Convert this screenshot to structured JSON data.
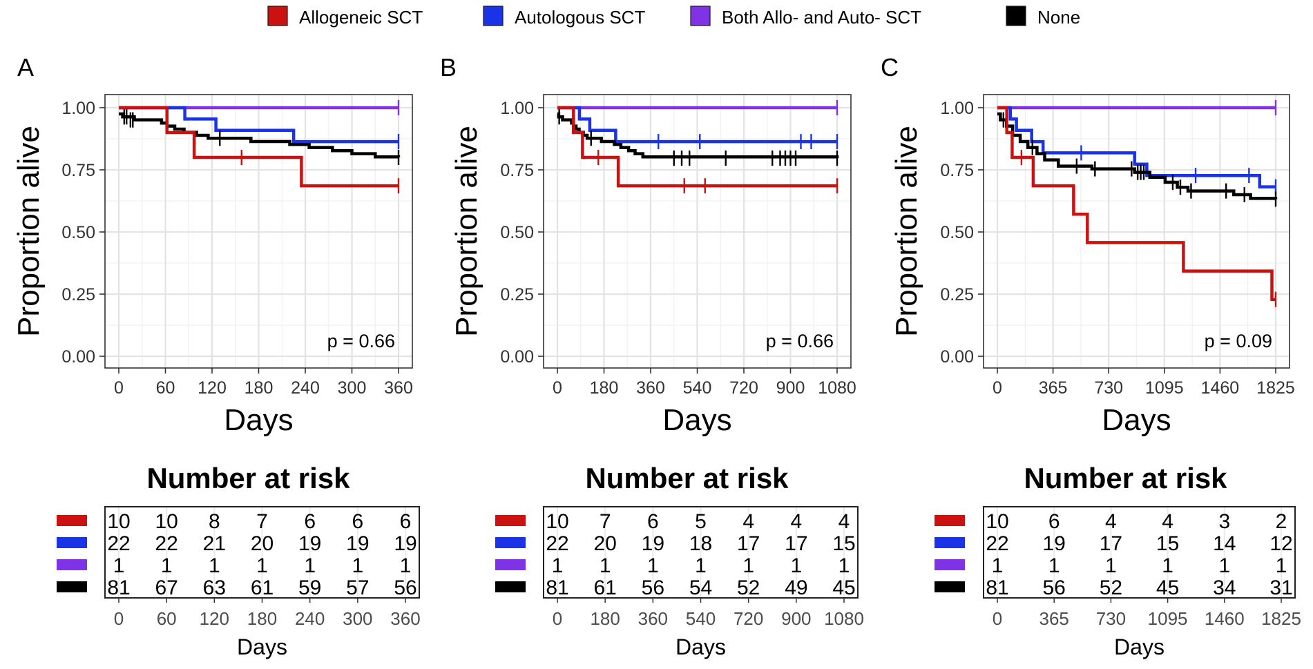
{
  "legend": [
    {
      "label": "Allogeneic SCT",
      "color": "#cc1111"
    },
    {
      "label": "Autologous SCT",
      "color": "#1a33e6"
    },
    {
      "label": "Both Allo- and Auto- SCT",
      "color": "#8033e6"
    },
    {
      "label": "None",
      "color": "#000000"
    }
  ],
  "risk_title": "Number at risk",
  "chart_data": [
    {
      "type": "line",
      "panel": "A",
      "xlabel": "Days",
      "ylabel": "Proportion alive",
      "xlim": [
        0,
        360
      ],
      "ylim": [
        0,
        1
      ],
      "xticks": [
        0,
        60,
        120,
        180,
        240,
        300,
        360
      ],
      "yticks": [
        "0.00",
        "0.25",
        "0.50",
        "0.75",
        "1.00"
      ],
      "pvalue": "p = 0.66",
      "series": [
        {
          "name": "Allogeneic SCT",
          "steps": [
            [
              0,
              1.0
            ],
            [
              62,
              0.9
            ],
            [
              97,
              0.8
            ],
            [
              235,
              0.6857
            ],
            [
              360,
              0.6857
            ]
          ],
          "censors": [
            [
              158,
              0.8
            ],
            [
              360,
              0.6857
            ]
          ]
        },
        {
          "name": "Autologous SCT",
          "steps": [
            [
              0,
              1.0
            ],
            [
              85,
              0.9545
            ],
            [
              125,
              0.9091
            ],
            [
              225,
              0.8636
            ],
            [
              360,
              0.8636
            ]
          ],
          "censors": [
            [
              360,
              0.8636
            ]
          ]
        },
        {
          "name": "Both Allo- and Auto- SCT",
          "steps": [
            [
              0,
              1.0
            ],
            [
              360,
              1.0
            ]
          ],
          "censors": [
            [
              360,
              1.0
            ]
          ]
        },
        {
          "name": "None",
          "steps": [
            [
              0,
              0.975
            ],
            [
              5,
              0.963
            ],
            [
              20,
              0.951
            ],
            [
              55,
              0.938
            ],
            [
              62,
              0.926
            ],
            [
              72,
              0.914
            ],
            [
              84,
              0.901
            ],
            [
              100,
              0.889
            ],
            [
              115,
              0.877
            ],
            [
              170,
              0.864
            ],
            [
              220,
              0.852
            ],
            [
              245,
              0.84
            ],
            [
              275,
              0.827
            ],
            [
              300,
              0.815
            ],
            [
              330,
              0.802
            ],
            [
              360,
              0.8
            ]
          ],
          "censors": [
            [
              7,
              0.963
            ],
            [
              10,
              0.963
            ],
            [
              15,
              0.951
            ],
            [
              18,
              0.951
            ],
            [
              130,
              0.877
            ],
            [
              360,
              0.8
            ]
          ]
        }
      ],
      "risk_ticks": [
        0,
        60,
        120,
        180,
        240,
        300,
        360
      ],
      "risk_table": [
        [
          "10",
          "10",
          "8",
          "7",
          "6",
          "6",
          "6"
        ],
        [
          "22",
          "22",
          "21",
          "20",
          "19",
          "19",
          "19"
        ],
        [
          "1",
          "1",
          "1",
          "1",
          "1",
          "1",
          "1"
        ],
        [
          "81",
          "67",
          "63",
          "61",
          "59",
          "57",
          "56"
        ]
      ]
    },
    {
      "type": "line",
      "panel": "B",
      "xlabel": "Days",
      "ylabel": "Proportion alive",
      "xlim": [
        0,
        1080
      ],
      "ylim": [
        0,
        1
      ],
      "xticks": [
        0,
        180,
        360,
        540,
        720,
        900,
        1080
      ],
      "yticks": [
        "0.00",
        "0.25",
        "0.50",
        "0.75",
        "1.00"
      ],
      "pvalue": "p = 0.66",
      "series": [
        {
          "name": "Allogeneic SCT",
          "steps": [
            [
              0,
              1.0
            ],
            [
              62,
              0.9
            ],
            [
              97,
              0.8
            ],
            [
              235,
              0.6857
            ],
            [
              1080,
              0.6857
            ]
          ],
          "censors": [
            [
              158,
              0.8
            ],
            [
              490,
              0.6857
            ],
            [
              570,
              0.6857
            ],
            [
              1080,
              0.6857
            ]
          ]
        },
        {
          "name": "Autologous SCT",
          "steps": [
            [
              0,
              1.0
            ],
            [
              85,
              0.9545
            ],
            [
              125,
              0.9091
            ],
            [
              225,
              0.8636
            ],
            [
              1080,
              0.8636
            ]
          ],
          "censors": [
            [
              390,
              0.8636
            ],
            [
              550,
              0.8636
            ],
            [
              940,
              0.8636
            ],
            [
              980,
              0.8636
            ],
            [
              1080,
              0.8636
            ]
          ]
        },
        {
          "name": "Both Allo- and Auto- SCT",
          "steps": [
            [
              0,
              1.0
            ],
            [
              1080,
              1.0
            ]
          ],
          "censors": [
            [
              1080,
              1.0
            ]
          ]
        },
        {
          "name": "None",
          "steps": [
            [
              0,
              0.975
            ],
            [
              5,
              0.963
            ],
            [
              20,
              0.951
            ],
            [
              55,
              0.938
            ],
            [
              62,
              0.926
            ],
            [
              72,
              0.914
            ],
            [
              84,
              0.901
            ],
            [
              100,
              0.889
            ],
            [
              115,
              0.877
            ],
            [
              170,
              0.864
            ],
            [
              220,
              0.852
            ],
            [
              245,
              0.84
            ],
            [
              275,
              0.827
            ],
            [
              300,
              0.815
            ],
            [
              330,
              0.802
            ],
            [
              1080,
              0.797
            ]
          ],
          "censors": [
            [
              7,
              0.963
            ],
            [
              60,
              0.926
            ],
            [
              130,
              0.877
            ],
            [
              450,
              0.797
            ],
            [
              480,
              0.797
            ],
            [
              510,
              0.797
            ],
            [
              650,
              0.797
            ],
            [
              830,
              0.797
            ],
            [
              860,
              0.797
            ],
            [
              880,
              0.797
            ],
            [
              900,
              0.797
            ],
            [
              920,
              0.797
            ],
            [
              1080,
              0.797
            ]
          ]
        }
      ],
      "risk_ticks": [
        0,
        180,
        360,
        540,
        720,
        900,
        1080
      ],
      "risk_table": [
        [
          "10",
          "7",
          "6",
          "5",
          "4",
          "4",
          "4"
        ],
        [
          "22",
          "20",
          "19",
          "18",
          "17",
          "17",
          "15"
        ],
        [
          "1",
          "1",
          "1",
          "1",
          "1",
          "1",
          "1"
        ],
        [
          "81",
          "61",
          "56",
          "54",
          "52",
          "49",
          "45"
        ]
      ]
    },
    {
      "type": "line",
      "panel": "C",
      "xlabel": "Days",
      "ylabel": "Proportion alive",
      "xlim": [
        0,
        1825
      ],
      "ylim": [
        0,
        1
      ],
      "xticks": [
        0,
        365,
        730,
        1095,
        1460,
        1825
      ],
      "yticks": [
        "0.00",
        "0.25",
        "0.50",
        "0.75",
        "1.00"
      ],
      "pvalue": "p = 0.09",
      "series": [
        {
          "name": "Allogeneic SCT",
          "steps": [
            [
              0,
              1.0
            ],
            [
              62,
              0.9
            ],
            [
              97,
              0.8
            ],
            [
              235,
              0.6857
            ],
            [
              500,
              0.5714
            ],
            [
              590,
              0.4571
            ],
            [
              1220,
              0.3429
            ],
            [
              1800,
              0.2286
            ],
            [
              1825,
              0.2286
            ]
          ],
          "censors": [
            [
              158,
              0.8
            ],
            [
              1825,
              0.2286
            ]
          ]
        },
        {
          "name": "Autologous SCT",
          "steps": [
            [
              0,
              1.0
            ],
            [
              85,
              0.9545
            ],
            [
              125,
              0.9091
            ],
            [
              225,
              0.8636
            ],
            [
              300,
              0.8182
            ],
            [
              900,
              0.7727
            ],
            [
              980,
              0.7273
            ],
            [
              1720,
              0.6818
            ],
            [
              1825,
              0.6818
            ]
          ],
          "censors": [
            [
              550,
              0.8182
            ],
            [
              1300,
              0.7273
            ],
            [
              1650,
              0.7273
            ],
            [
              1825,
              0.6818
            ]
          ]
        },
        {
          "name": "Both Allo- and Auto- SCT",
          "steps": [
            [
              0,
              1.0
            ],
            [
              1825,
              1.0
            ]
          ],
          "censors": [
            [
              1825,
              1.0
            ]
          ]
        },
        {
          "name": "None",
          "steps": [
            [
              0,
              0.975
            ],
            [
              20,
              0.951
            ],
            [
              60,
              0.926
            ],
            [
              100,
              0.889
            ],
            [
              150,
              0.864
            ],
            [
              200,
              0.84
            ],
            [
              260,
              0.815
            ],
            [
              310,
              0.79
            ],
            [
              400,
              0.765
            ],
            [
              620,
              0.754
            ],
            [
              900,
              0.74
            ],
            [
              1000,
              0.72
            ],
            [
              1100,
              0.7
            ],
            [
              1180,
              0.68
            ],
            [
              1250,
              0.665
            ],
            [
              1550,
              0.65
            ],
            [
              1660,
              0.635
            ],
            [
              1825,
              0.632
            ]
          ],
          "censors": [
            [
              40,
              0.951
            ],
            [
              230,
              0.84
            ],
            [
              520,
              0.765
            ],
            [
              640,
              0.754
            ],
            [
              880,
              0.754
            ],
            [
              920,
              0.74
            ],
            [
              940,
              0.74
            ],
            [
              960,
              0.74
            ],
            [
              1150,
              0.7
            ],
            [
              1200,
              0.68
            ],
            [
              1270,
              0.665
            ],
            [
              1500,
              0.665
            ],
            [
              1620,
              0.65
            ],
            [
              1825,
              0.632
            ]
          ]
        }
      ],
      "risk_ticks": [
        0,
        365,
        730,
        1095,
        1460,
        1825
      ],
      "risk_table": [
        [
          "10",
          "6",
          "4",
          "4",
          "3",
          "2"
        ],
        [
          "22",
          "19",
          "17",
          "15",
          "14",
          "12"
        ],
        [
          "1",
          "1",
          "1",
          "1",
          "1",
          "1"
        ],
        [
          "81",
          "56",
          "52",
          "45",
          "34",
          "31"
        ]
      ]
    }
  ]
}
